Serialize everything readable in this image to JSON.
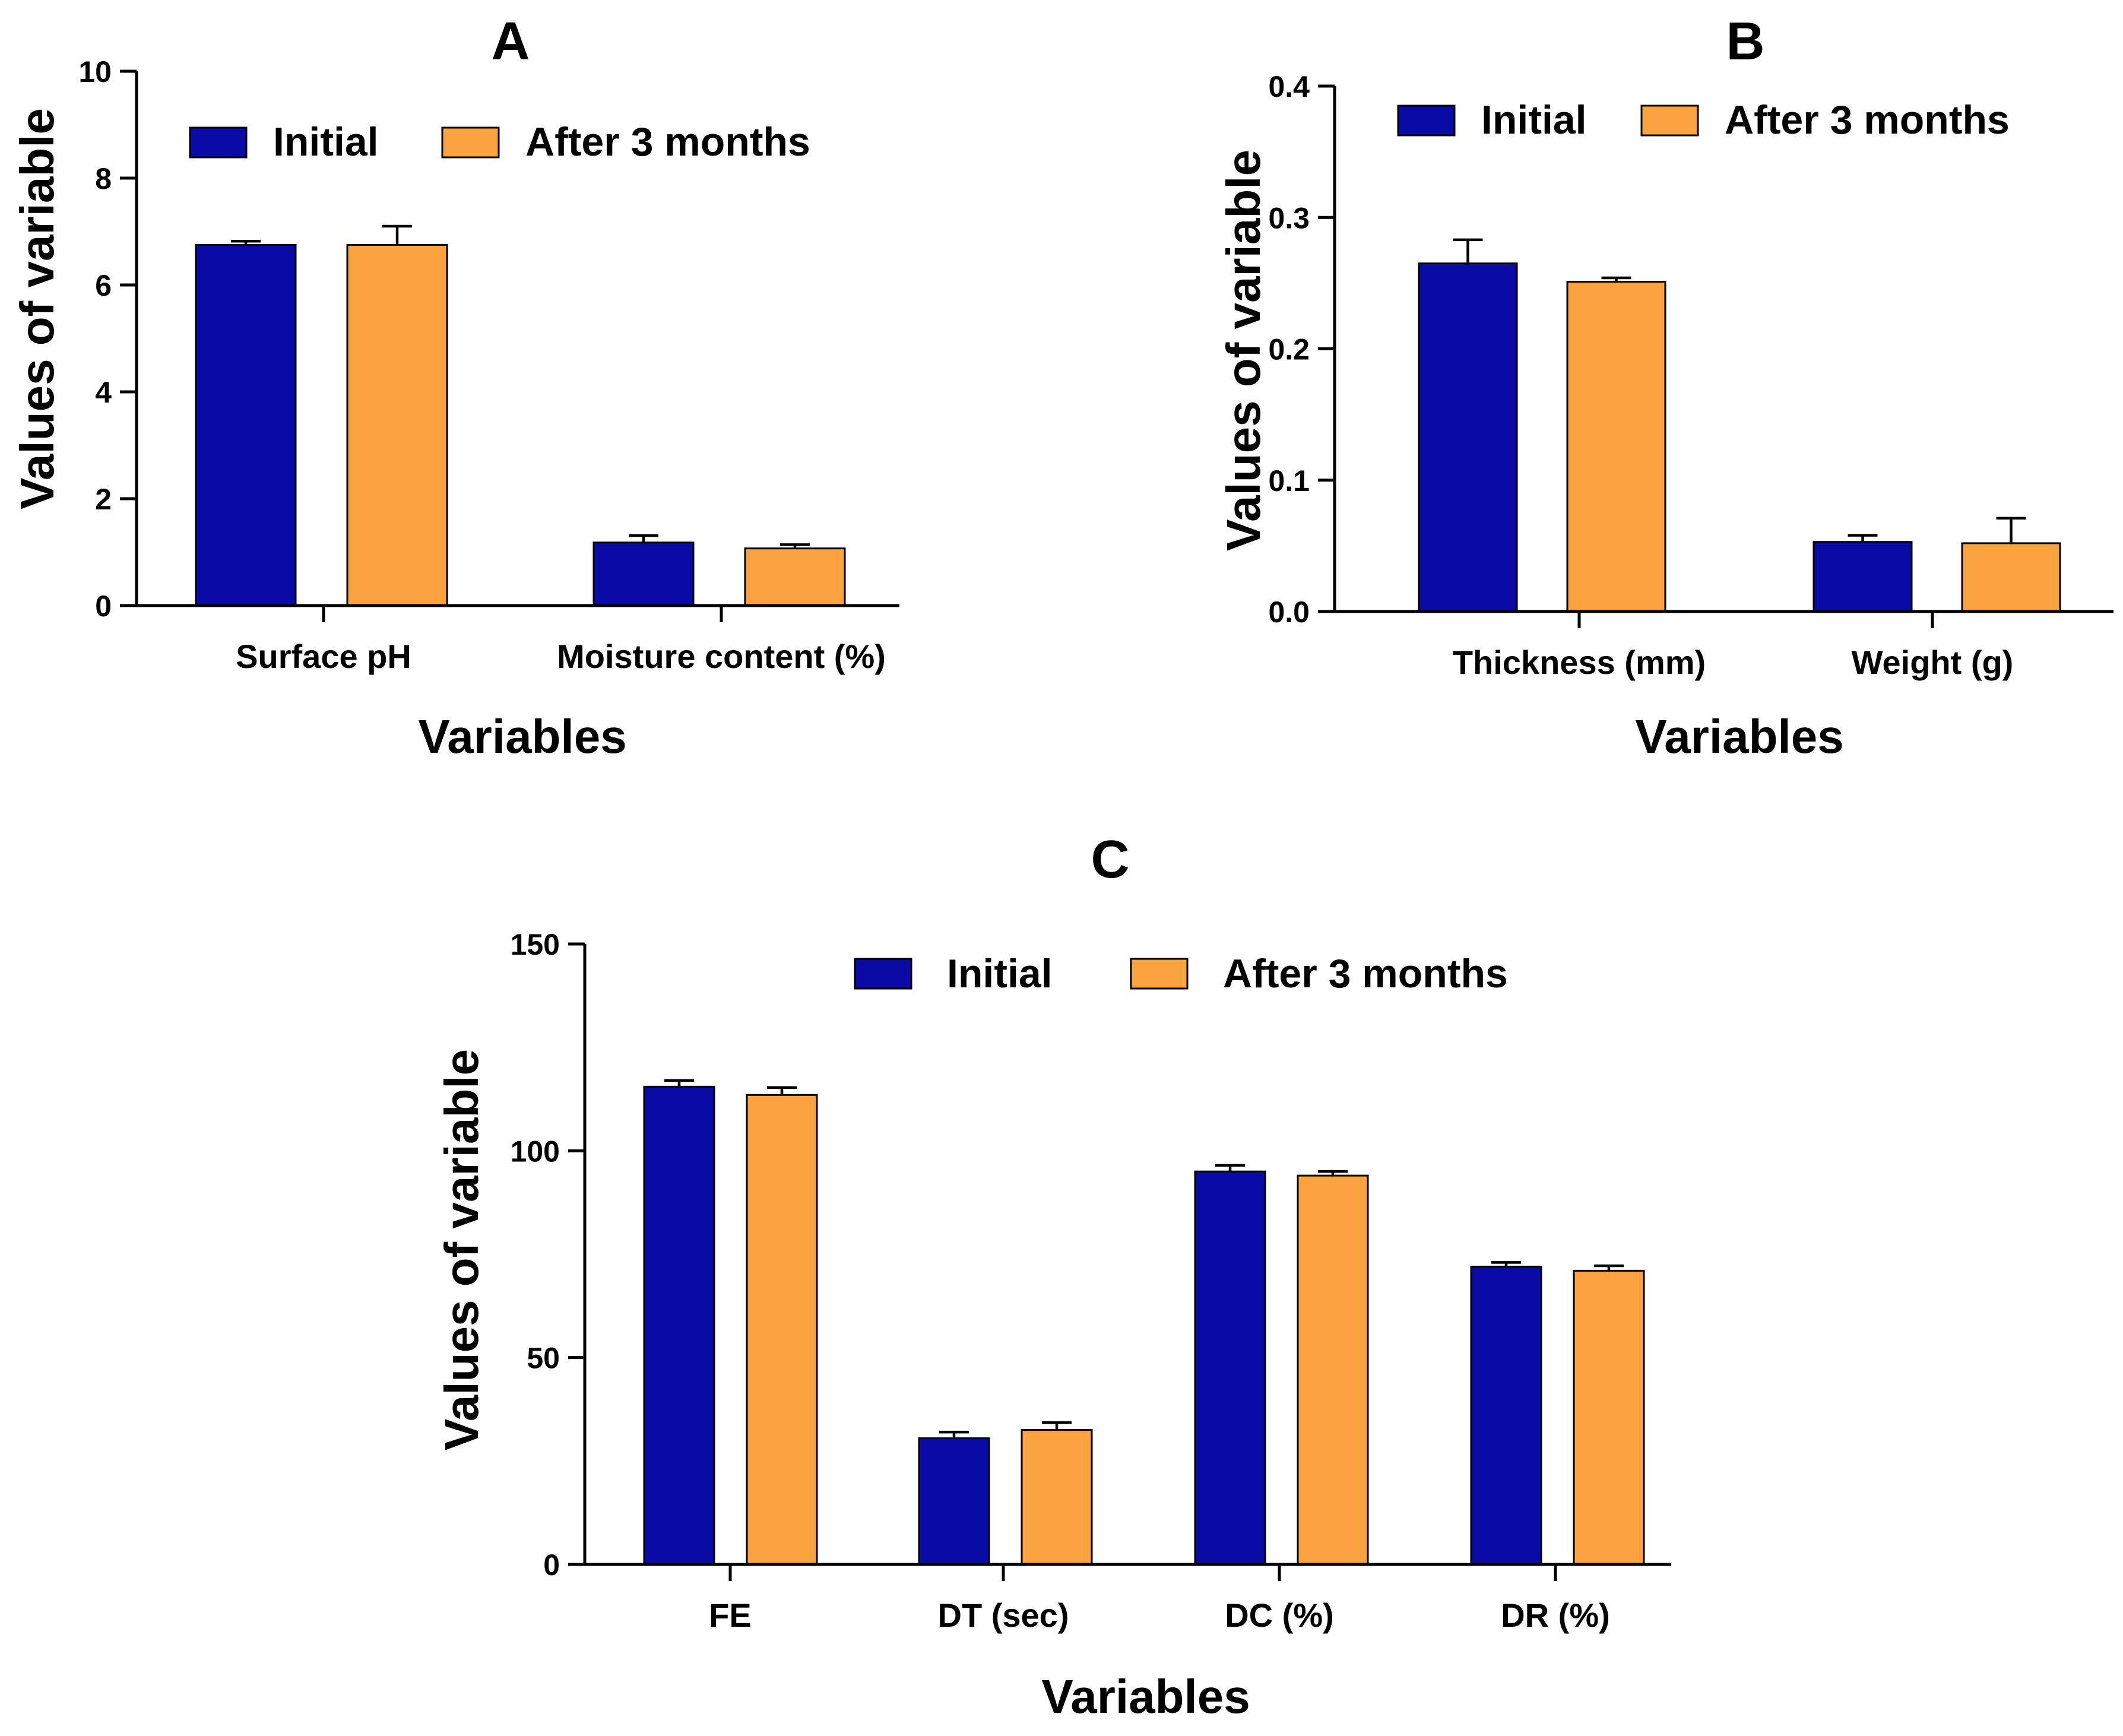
{
  "chart_data": [
    {
      "type": "bar",
      "title": "A",
      "xlabel": "Variables",
      "ylabel": "Values of variable",
      "ylim": [
        0,
        10
      ],
      "yticks": [
        0,
        2,
        4,
        6,
        8,
        10
      ],
      "tick_labels": [
        "0",
        "2",
        "4",
        "6",
        "8",
        "10"
      ],
      "categories": [
        "Surface pH",
        "Moisture content  (%)"
      ],
      "legend": {
        "placement": "top"
      },
      "series": [
        {
          "name": "Initial",
          "color": "#0a0aa6",
          "values": [
            6.75,
            1.18
          ],
          "errors": [
            0.07,
            0.13
          ]
        },
        {
          "name": "After 3 months",
          "color": "#fba33f",
          "values": [
            6.75,
            1.07
          ],
          "errors": [
            0.35,
            0.07
          ]
        }
      ]
    },
    {
      "type": "bar",
      "title": "B",
      "xlabel": "Variables",
      "ylabel": "Values of variable",
      "ylim": [
        0,
        0.4
      ],
      "yticks": [
        0,
        0.1,
        0.2,
        0.3,
        0.4
      ],
      "tick_labels": [
        "0.0",
        "0.1",
        "0.2",
        "0.3",
        "0.4"
      ],
      "categories": [
        "Thickness (mm)",
        "Weight (g)"
      ],
      "legend": {
        "placement": "top"
      },
      "series": [
        {
          "name": "Initial",
          "color": "#0a0aa6",
          "values": [
            0.265,
            0.053
          ],
          "errors": [
            0.018,
            0.005
          ]
        },
        {
          "name": "After 3 months",
          "color": "#fba33f",
          "values": [
            0.251,
            0.052
          ],
          "errors": [
            0.003,
            0.019
          ]
        }
      ]
    },
    {
      "type": "bar",
      "title": "C",
      "xlabel": "Variables",
      "ylabel": "Values of variable",
      "ylim": [
        0,
        150
      ],
      "yticks": [
        0,
        50,
        100,
        150
      ],
      "tick_labels": [
        "0",
        "50",
        "100",
        "150"
      ],
      "categories": [
        "FE",
        "DT (sec)",
        "DC (%)",
        "DR (%)"
      ],
      "legend": {
        "placement": "top"
      },
      "series": [
        {
          "name": "Initial",
          "color": "#0a0aa6",
          "values": [
            115.5,
            30.5,
            95,
            72
          ],
          "errors": [
            1.5,
            1.5,
            1.5,
            1
          ]
        },
        {
          "name": "After 3 months",
          "color": "#fba33f",
          "values": [
            113.5,
            32.5,
            94,
            71
          ],
          "errors": [
            1.8,
            1.8,
            1,
            1.2
          ]
        }
      ]
    }
  ]
}
